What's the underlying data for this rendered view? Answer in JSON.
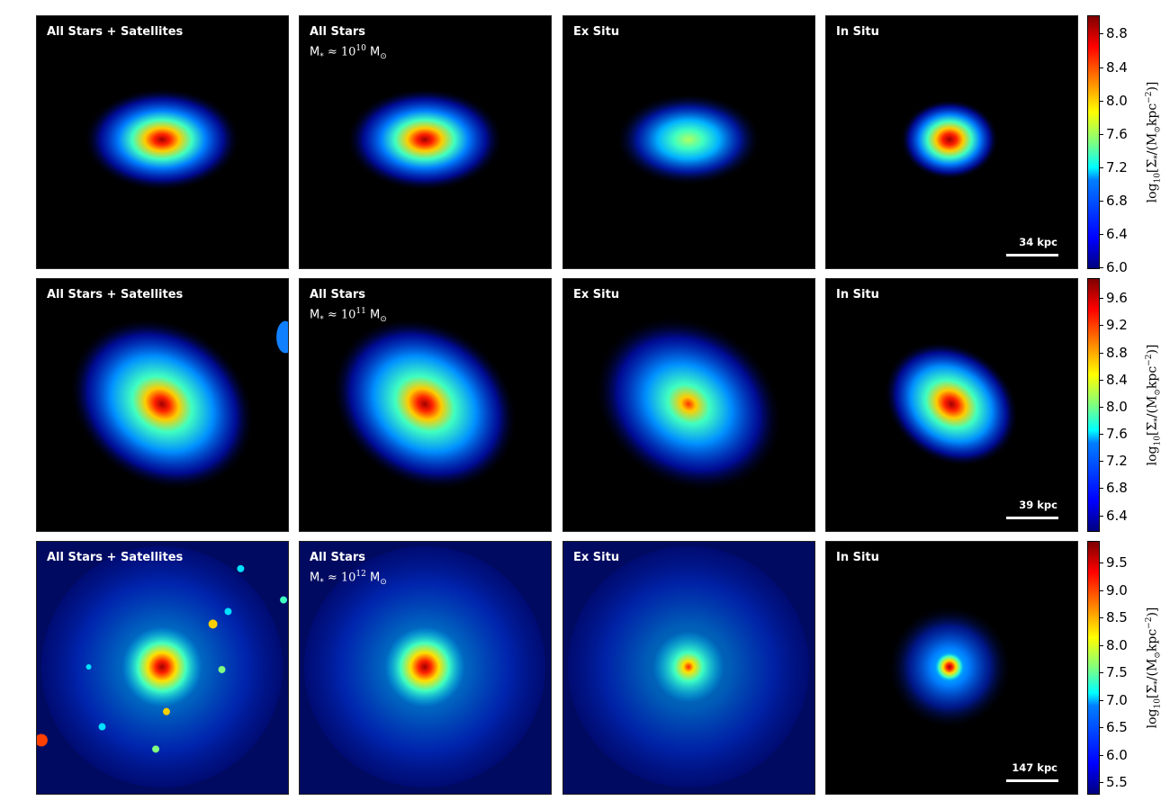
{
  "rows": [
    {
      "panels": [
        {
          "title": "All Stars + Satellites"
        },
        {
          "title": "All Stars",
          "mass": {
            "prefix": "M",
            "sub": "*",
            "approx": " ≈ 10",
            "exp": "10",
            "unit": " M",
            "unit_sub": "⊙"
          }
        },
        {
          "title": "Ex Situ"
        },
        {
          "title": "In Situ"
        }
      ],
      "scale_bar": "34 kpc",
      "colorbar": {
        "ticks": [
          "6.0",
          "6.4",
          "6.8",
          "7.2",
          "7.6",
          "8.0",
          "8.4",
          "8.8"
        ],
        "label": {
          "log": "log",
          "base": "10",
          "quantity": "[Σ",
          "q_sub": "*",
          "mid": "/(M",
          "m_sub": "⊙",
          "kpc": "kpc",
          "exp": "−2",
          "end": ")]"
        }
      }
    },
    {
      "panels": [
        {
          "title": "All Stars + Satellites"
        },
        {
          "title": "All Stars",
          "mass": {
            "prefix": "M",
            "sub": "*",
            "approx": " ≈ 10",
            "exp": "11",
            "unit": " M",
            "unit_sub": "⊙"
          }
        },
        {
          "title": "Ex Situ"
        },
        {
          "title": "In Situ"
        }
      ],
      "scale_bar": "39 kpc",
      "colorbar": {
        "ticks": [
          "6.4",
          "6.8",
          "7.2",
          "7.6",
          "8.0",
          "8.4",
          "8.8",
          "9.2",
          "9.6"
        ],
        "label": {
          "log": "log",
          "base": "10",
          "quantity": "[Σ",
          "q_sub": "*",
          "mid": "/(M",
          "m_sub": "⊙",
          "kpc": "kpc",
          "exp": "−2",
          "end": ")]"
        }
      }
    },
    {
      "panels": [
        {
          "title": "All Stars + Satellites"
        },
        {
          "title": "All Stars",
          "mass": {
            "prefix": "M",
            "sub": "*",
            "approx": " ≈ 10",
            "exp": "12",
            "unit": " M",
            "unit_sub": "⊙"
          }
        },
        {
          "title": "Ex Situ"
        },
        {
          "title": "In Situ"
        }
      ],
      "scale_bar": "147 kpc",
      "colorbar": {
        "ticks": [
          "5.5",
          "6.0",
          "6.5",
          "7.0",
          "7.5",
          "8.0",
          "8.5",
          "9.0",
          "9.5"
        ],
        "label": {
          "log": "log",
          "base": "10",
          "quantity": "[Σ",
          "q_sub": "*",
          "mid": "/(M",
          "m_sub": "⊙",
          "kpc": "kpc",
          "exp": "−2",
          "end": ")]"
        }
      }
    }
  ],
  "colors": {
    "background": "#000000",
    "text": "#ffffff",
    "colormap": "jet"
  }
}
